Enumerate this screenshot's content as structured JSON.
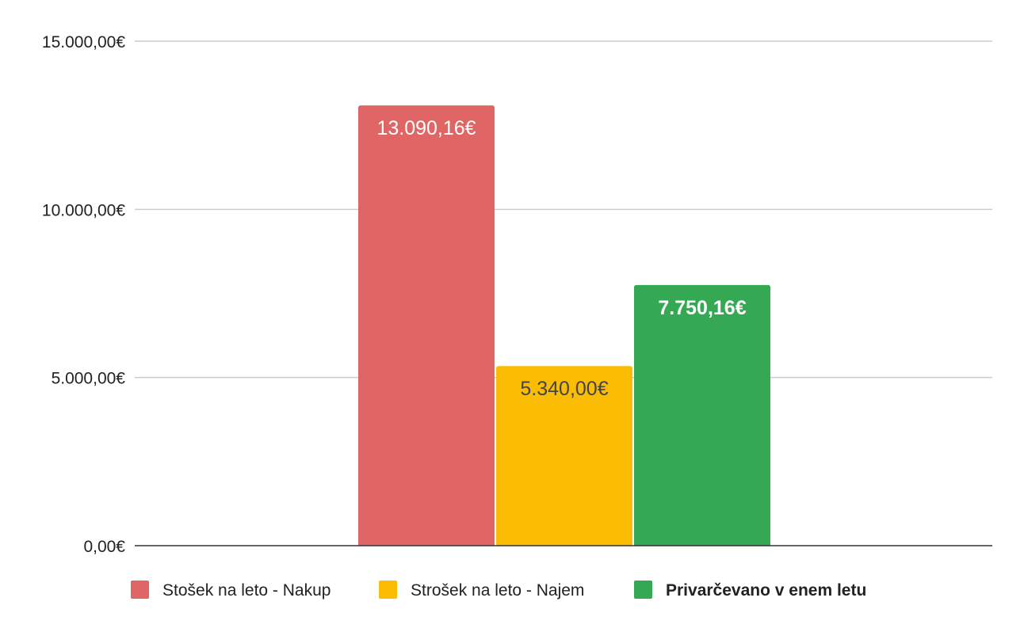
{
  "chart_data": {
    "type": "bar",
    "title": "",
    "xlabel": "",
    "ylabel": "",
    "ylim": [
      0,
      15000
    ],
    "yticks": [
      {
        "value": 0,
        "label": "0,00€"
      },
      {
        "value": 5000,
        "label": "5.000,00€"
      },
      {
        "value": 10000,
        "label": "10.000,00€"
      },
      {
        "value": 15000,
        "label": "15.000,00€"
      }
    ],
    "grid": true,
    "legend_position": "bottom",
    "series": [
      {
        "name": "Stošek na leto - Nakup",
        "value": 13090.16,
        "label": "13.090,16€",
        "color": "#e06666",
        "label_color": "#ffffff",
        "bold": false
      },
      {
        "name": "Strošek na leto - Najem",
        "value": 5340.0,
        "label": "5.340,00€",
        "color": "#fbbc04",
        "label_color": "#444444",
        "bold": false
      },
      {
        "name": "Privarčevano v enem letu",
        "value": 7750.16,
        "label": "7.750,16€",
        "color": "#34a853",
        "label_color": "#ffffff",
        "bold": true
      }
    ]
  }
}
